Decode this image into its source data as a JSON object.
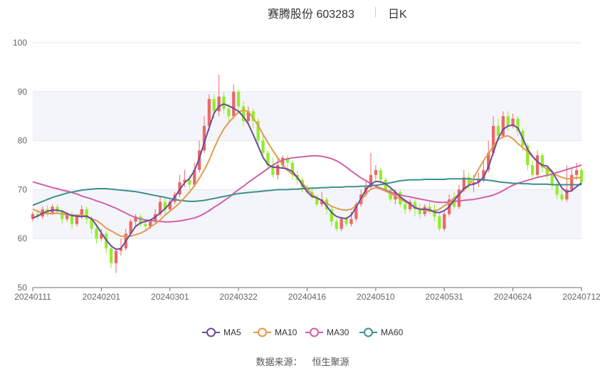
{
  "title": {
    "main": "赛腾股份 603283",
    "period": "日K"
  },
  "source": {
    "label": "数据来源：",
    "value": "恒生聚源"
  },
  "colors": {
    "up": "#ee6666",
    "down": "#91ee2a",
    "MA5": "#6a4c9c",
    "MA10": "#e39a4a",
    "MA30": "#d15fa8",
    "MA60": "#3d8f8f"
  },
  "chart_data": {
    "type": "candlestick",
    "y_axis": {
      "min": 50,
      "max": 100,
      "ticks": [
        50,
        60,
        70,
        80,
        90,
        100
      ]
    },
    "x_axis": {
      "tick_labels": [
        "20240111",
        "20240201",
        "20240301",
        "20240322",
        "20240416",
        "20240510",
        "20240531",
        "20240624",
        "20240712"
      ],
      "tick_indices": [
        0,
        14,
        28,
        42,
        56,
        70,
        84,
        98,
        112
      ]
    },
    "grid": true,
    "legend": {
      "position": "bottom",
      "items": [
        "MA5",
        "MA10",
        "MA30",
        "MA60"
      ]
    },
    "candles": [
      [
        64.0,
        65.0,
        63.5,
        65.5
      ],
      [
        65.0,
        64.5,
        64.0,
        65.8
      ],
      [
        64.5,
        66.0,
        64.0,
        66.5
      ],
      [
        66.0,
        65.0,
        64.5,
        66.8
      ],
      [
        65.0,
        66.5,
        64.8,
        67.0
      ],
      [
        66.5,
        65.5,
        65.0,
        67.0
      ],
      [
        65.5,
        64.0,
        63.0,
        66.0
      ],
      [
        64.0,
        65.0,
        63.5,
        65.5
      ],
      [
        65.0,
        63.0,
        62.0,
        65.5
      ],
      [
        63.0,
        64.5,
        62.5,
        65.0
      ],
      [
        64.5,
        66.0,
        64.0,
        66.8
      ],
      [
        66.0,
        64.0,
        63.0,
        66.5
      ],
      [
        64.0,
        62.0,
        61.0,
        64.5
      ],
      [
        62.0,
        60.0,
        59.0,
        63.0
      ],
      [
        60.0,
        61.0,
        59.5,
        62.0
      ],
      [
        61.0,
        58.0,
        57.0,
        61.5
      ],
      [
        58.0,
        55.0,
        54.0,
        58.5
      ],
      [
        55.0,
        57.5,
        53.0,
        58.0
      ],
      [
        57.5,
        58.0,
        56.5,
        60.0
      ],
      [
        58.0,
        61.0,
        57.5,
        62.0
      ],
      [
        61.0,
        63.5,
        60.5,
        64.0
      ],
      [
        63.5,
        64.5,
        62.5,
        65.0
      ],
      [
        64.5,
        63.0,
        62.5,
        65.0
      ],
      [
        63.0,
        62.5,
        61.8,
        63.8
      ],
      [
        62.5,
        63.5,
        62.0,
        64.0
      ],
      [
        63.5,
        65.0,
        63.0,
        66.0
      ],
      [
        65.0,
        67.5,
        64.5,
        68.5
      ],
      [
        67.5,
        66.0,
        65.0,
        68.5
      ],
      [
        66.0,
        67.5,
        65.5,
        68.0
      ],
      [
        67.5,
        69.0,
        67.0,
        69.5
      ],
      [
        69.0,
        71.5,
        68.5,
        73.0
      ],
      [
        71.5,
        72.0,
        70.5,
        74.0
      ],
      [
        72.0,
        71.0,
        70.0,
        73.0
      ],
      [
        71.0,
        74.0,
        70.5,
        75.5
      ],
      [
        74.0,
        78.0,
        73.5,
        80.0
      ],
      [
        78.0,
        83.0,
        77.5,
        85.0
      ],
      [
        83.0,
        88.5,
        82.0,
        89.5
      ],
      [
        88.5,
        86.0,
        84.5,
        89.5
      ],
      [
        86.0,
        89.0,
        85.0,
        93.5
      ],
      [
        89.0,
        86.5,
        85.5,
        90.0
      ],
      [
        86.5,
        85.0,
        84.0,
        87.5
      ],
      [
        85.0,
        90.0,
        84.5,
        91.5
      ],
      [
        90.0,
        87.0,
        86.0,
        90.5
      ],
      [
        87.0,
        84.0,
        83.0,
        88.0
      ],
      [
        84.0,
        86.0,
        83.5,
        87.0
      ],
      [
        86.0,
        84.0,
        82.5,
        86.5
      ],
      [
        84.0,
        80.0,
        79.0,
        84.5
      ],
      [
        80.0,
        77.5,
        76.5,
        81.0
      ],
      [
        77.5,
        75.0,
        74.0,
        78.0
      ],
      [
        75.0,
        73.0,
        72.5,
        76.5
      ],
      [
        73.0,
        75.0,
        72.0,
        76.5
      ],
      [
        75.0,
        76.5,
        74.5,
        77.0
      ],
      [
        76.5,
        75.5,
        74.0,
        77.0
      ],
      [
        75.5,
        73.0,
        72.0,
        76.0
      ],
      [
        73.0,
        72.0,
        71.0,
        74.0
      ],
      [
        72.0,
        70.5,
        69.5,
        72.5
      ],
      [
        70.5,
        69.5,
        69.0,
        71.0
      ],
      [
        69.5,
        68.5,
        68.0,
        70.5
      ],
      [
        68.5,
        67.0,
        66.5,
        69.0
      ],
      [
        67.0,
        68.0,
        66.5,
        69.5
      ],
      [
        68.0,
        66.0,
        65.0,
        68.5
      ],
      [
        66.0,
        63.5,
        62.5,
        66.5
      ],
      [
        63.5,
        62.0,
        61.5,
        64.0
      ],
      [
        62.0,
        64.0,
        61.5,
        64.5
      ],
      [
        64.0,
        63.0,
        62.5,
        64.5
      ],
      [
        63.0,
        64.0,
        62.5,
        65.5
      ],
      [
        64.0,
        67.0,
        63.5,
        67.5
      ],
      [
        67.0,
        69.0,
        66.5,
        70.0
      ],
      [
        69.0,
        70.5,
        68.5,
        72.0
      ],
      [
        70.5,
        73.0,
        70.0,
        77.5
      ],
      [
        73.0,
        74.0,
        72.0,
        75.0
      ],
      [
        74.0,
        72.0,
        71.0,
        74.5
      ],
      [
        72.0,
        70.0,
        69.5,
        72.5
      ],
      [
        70.0,
        68.0,
        67.5,
        70.5
      ],
      [
        68.0,
        69.5,
        67.0,
        70.0
      ],
      [
        69.5,
        67.0,
        66.5,
        70.0
      ],
      [
        67.0,
        66.0,
        65.0,
        68.0
      ],
      [
        66.0,
        67.5,
        65.5,
        68.0
      ],
      [
        67.5,
        66.0,
        64.5,
        68.0
      ],
      [
        66.0,
        65.0,
        64.0,
        67.0
      ],
      [
        65.0,
        66.5,
        64.5,
        67.0
      ],
      [
        66.5,
        66.0,
        65.0,
        67.5
      ],
      [
        66.0,
        64.5,
        63.5,
        67.0
      ],
      [
        64.5,
        62.0,
        61.5,
        65.0
      ],
      [
        62.0,
        65.0,
        61.5,
        65.5
      ],
      [
        65.0,
        68.0,
        64.5,
        69.0
      ],
      [
        68.0,
        66.5,
        66.0,
        69.5
      ],
      [
        66.5,
        70.0,
        66.0,
        71.0
      ],
      [
        70.0,
        72.5,
        69.5,
        74.0
      ],
      [
        72.5,
        71.0,
        70.0,
        73.5
      ],
      [
        71.0,
        71.5,
        69.5,
        73.0
      ],
      [
        71.5,
        72.0,
        70.5,
        73.5
      ],
      [
        72.0,
        74.0,
        71.5,
        76.0
      ],
      [
        74.0,
        77.5,
        73.5,
        80.0
      ],
      [
        77.5,
        83.0,
        77.0,
        85.0
      ],
      [
        83.0,
        81.0,
        80.0,
        84.5
      ],
      [
        81.0,
        85.0,
        80.5,
        86.0
      ],
      [
        85.0,
        83.0,
        82.0,
        86.0
      ],
      [
        83.0,
        84.5,
        82.5,
        85.5
      ],
      [
        84.5,
        82.0,
        81.0,
        85.0
      ],
      [
        82.0,
        79.0,
        78.0,
        82.5
      ],
      [
        79.0,
        75.0,
        74.0,
        79.5
      ],
      [
        75.0,
        73.0,
        72.0,
        76.0
      ],
      [
        73.0,
        77.0,
        72.5,
        78.0
      ],
      [
        77.0,
        74.5,
        73.5,
        77.5
      ],
      [
        74.5,
        73.0,
        72.0,
        75.0
      ],
      [
        73.0,
        71.0,
        70.0,
        73.5
      ],
      [
        71.0,
        69.0,
        68.0,
        71.5
      ],
      [
        69.0,
        68.0,
        67.5,
        70.0
      ],
      [
        68.0,
        70.0,
        67.5,
        75.0
      ],
      [
        70.0,
        73.0,
        69.5,
        74.5
      ],
      [
        73.0,
        74.0,
        72.0,
        75.5
      ],
      [
        74.0,
        71.5,
        71.0,
        74.5
      ]
    ],
    "ma": {
      "MA5": [
        64.2,
        64.6,
        65.2,
        65.6,
        65.8,
        65.8,
        65.6,
        65.1,
        64.7,
        64.6,
        64.5,
        64.6,
        64.1,
        62.7,
        61.2,
        59.7,
        58.5,
        57.8,
        58.0,
        59.5,
        61.0,
        62.5,
        63.2,
        63.5,
        63.8,
        64.4,
        65.2,
        66.1,
        67.2,
        68.5,
        70.0,
        71.4,
        72.3,
        73.9,
        76.4,
        79.6,
        82.6,
        85.6,
        87.0,
        87.5,
        87.1,
        86.6,
        86.0,
        84.9,
        83.4,
        81.2,
        78.9,
        76.6,
        75.1,
        74.6,
        74.5,
        74.4,
        74.2,
        73.7,
        72.5,
        71.0,
        69.6,
        68.6,
        68.3,
        67.8,
        66.6,
        65.3,
        64.5,
        64.2,
        64.1,
        64.8,
        66.4,
        68.2,
        70.0,
        71.1,
        71.7,
        71.6,
        71.2,
        70.4,
        69.5,
        68.5,
        67.8,
        67.1,
        66.3,
        66.0,
        66.0,
        65.9,
        65.4,
        65.3,
        65.7,
        66.5,
        67.8,
        69.0,
        70.2,
        70.9,
        71.1,
        71.5,
        72.5,
        74.6,
        77.6,
        80.5,
        82.3,
        83.0,
        83.2,
        82.6,
        80.5,
        78.2,
        76.8,
        75.7,
        75.0,
        74.8,
        73.7,
        72.0,
        70.3,
        69.5,
        69.8,
        70.6,
        71.4
      ],
      "MA10": [
        66.0,
        65.6,
        65.2,
        65.1,
        65.1,
        65.2,
        65.0,
        64.9,
        64.8,
        64.8,
        64.8,
        64.5,
        64.0,
        63.7,
        63.0,
        62.1,
        61.6,
        61.0,
        60.5,
        60.4,
        60.5,
        60.8,
        61.1,
        61.6,
        62.4,
        63.0,
        63.8,
        64.8,
        65.6,
        66.4,
        67.3,
        68.4,
        69.5,
        70.8,
        72.3,
        74.0,
        76.0,
        78.4,
        80.6,
        82.4,
        83.7,
        84.8,
        85.8,
        86.3,
        85.9,
        84.6,
        83.1,
        81.3,
        79.6,
        78.0,
        76.5,
        75.1,
        73.9,
        73.2,
        72.5,
        71.4,
        70.2,
        69.1,
        68.3,
        67.7,
        67.2,
        66.6,
        66.2,
        65.9,
        65.8,
        66.0,
        66.7,
        67.8,
        69.1,
        70.1,
        70.4,
        70.1,
        69.7,
        69.2,
        68.7,
        68.1,
        67.5,
        67.0,
        66.5,
        66.0,
        65.8,
        65.6,
        65.6,
        66.0,
        66.7,
        67.4,
        68.3,
        69.1,
        69.9,
        70.8,
        72.4,
        74.2,
        75.9,
        77.3,
        78.9,
        80.2,
        80.8,
        81.0,
        80.4,
        79.4,
        78.6,
        77.7,
        76.7,
        75.7,
        74.8,
        74.2,
        73.5,
        72.9,
        72.5,
        72.2,
        72.3,
        72.4,
        72.5
      ],
      "MA30": [
        71.6,
        71.3,
        71.0,
        70.7,
        70.4,
        70.2,
        69.9,
        69.7,
        69.4,
        69.1,
        68.7,
        68.4,
        68.1,
        67.7,
        67.4,
        67.0,
        66.6,
        66.2,
        65.7,
        65.2,
        64.7,
        64.3,
        64.0,
        63.8,
        63.7,
        63.6,
        63.5,
        63.4,
        63.4,
        63.5,
        63.6,
        63.8,
        64.0,
        64.2,
        64.6,
        65.1,
        65.7,
        66.4,
        67.0,
        67.7,
        68.4,
        69.2,
        70.0,
        70.7,
        71.5,
        72.2,
        72.9,
        73.6,
        74.3,
        75.0,
        75.6,
        76.0,
        76.3,
        76.5,
        76.6,
        76.7,
        76.8,
        76.9,
        76.9,
        76.8,
        76.6,
        76.3,
        75.9,
        75.3,
        74.6,
        73.8,
        73.1,
        72.4,
        71.8,
        71.2,
        70.7,
        70.3,
        69.9,
        69.5,
        69.2,
        68.9,
        68.7,
        68.5,
        68.3,
        68.1,
        67.9,
        67.7,
        67.5,
        67.4,
        67.4,
        67.5,
        67.6,
        67.7,
        67.8,
        67.9,
        68.0,
        68.2,
        68.4,
        68.6,
        68.9,
        69.3,
        69.8,
        70.4,
        70.9,
        71.3,
        71.6,
        71.9,
        72.2,
        72.5,
        72.7,
        72.9,
        73.2,
        73.5,
        73.8,
        74.1,
        74.4,
        74.7,
        75.0
      ],
      "MA60": [
        66.8,
        67.2,
        67.6,
        68.0,
        68.4,
        68.7,
        69.0,
        69.3,
        69.5,
        69.7,
        69.9,
        70.0,
        70.1,
        70.2,
        70.2,
        70.2,
        70.1,
        70.0,
        69.9,
        69.8,
        69.7,
        69.6,
        69.4,
        69.2,
        69.0,
        68.8,
        68.6,
        68.4,
        68.2,
        68.0,
        67.8,
        67.7,
        67.6,
        67.6,
        67.7,
        67.8,
        68.0,
        68.2,
        68.4,
        68.6,
        68.8,
        69.0,
        69.2,
        69.3,
        69.4,
        69.5,
        69.6,
        69.7,
        69.8,
        69.9,
        70.0,
        70.0,
        70.0,
        70.1,
        70.1,
        70.2,
        70.2,
        70.3,
        70.3,
        70.4,
        70.4,
        70.5,
        70.5,
        70.5,
        70.6,
        70.6,
        70.6,
        70.7,
        70.7,
        70.8,
        70.9,
        71.0,
        71.2,
        71.4,
        71.6,
        71.8,
        71.9,
        72.0,
        72.0,
        72.0,
        72.1,
        72.1,
        72.1,
        72.1,
        72.1,
        72.2,
        72.2,
        72.2,
        72.2,
        72.2,
        72.1,
        72.1,
        72.0,
        71.9,
        71.8,
        71.6,
        71.5,
        71.4,
        71.3,
        71.3,
        71.2,
        71.2,
        71.1,
        71.1,
        71.1,
        71.1,
        71.0,
        71.0,
        71.0,
        71.0,
        71.0,
        71.0,
        71.0
      ]
    }
  }
}
